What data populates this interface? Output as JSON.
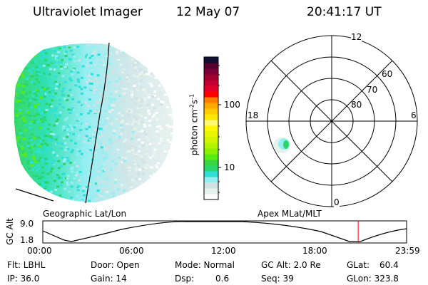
{
  "header": {
    "title": "Ultraviolet Imager",
    "date": "12 May 07",
    "time": "20:41:17 UT"
  },
  "colorbar": {
    "label": "photon cm",
    "label_sup1": "-2",
    "label_mid": "s",
    "label_sup2": "-1",
    "ticks": [
      "100",
      "10"
    ],
    "colors": [
      "#ffffff",
      "#e8f2ec",
      "#d2e2e2",
      "#96eef2",
      "#2ee0d8",
      "#2ad66a",
      "#38d640",
      "#58ec10",
      "#8cee00",
      "#b4f400",
      "#d2f400",
      "#e8f400",
      "#fff800",
      "#fff870",
      "#ffe800",
      "#ffcc00",
      "#ffa800",
      "#ff8000",
      "#ff0000",
      "#e0002e",
      "#c00030",
      "#a00030",
      "#7a0038",
      "#54002c",
      "#101034"
    ]
  },
  "polar": {
    "ring_labels": [
      "80",
      "70",
      "60"
    ],
    "mlt_labels": {
      "top": "12",
      "left": "18",
      "right": "6",
      "bottom": "0"
    }
  },
  "timeline": {
    "left_caption": "Geographic Lat/Lon",
    "right_caption": "Apex MLat/MLT",
    "ylabel": "GC Alt",
    "y_ticks": [
      "9.0",
      "1.8"
    ],
    "x_ticks": [
      "00:00",
      "06:00",
      "12:00",
      "18:00",
      "23:59"
    ],
    "current_time_fraction": 0.867,
    "marker_color": "#ff0000"
  },
  "status": {
    "flt": "Flt: LBHL",
    "ip": "IP: 36.0",
    "door": "Door: Open",
    "gain": "Gain: 14",
    "mode": "Mode: Normal",
    "dsp_label": "Dsp:",
    "dsp_value": "0.6",
    "gcalt": "GC Alt: 2.0 Re",
    "seq": "Seq: 39",
    "glat_label": "GLat:",
    "glat_value": "60.4",
    "glon": "GLon: 323.8"
  }
}
